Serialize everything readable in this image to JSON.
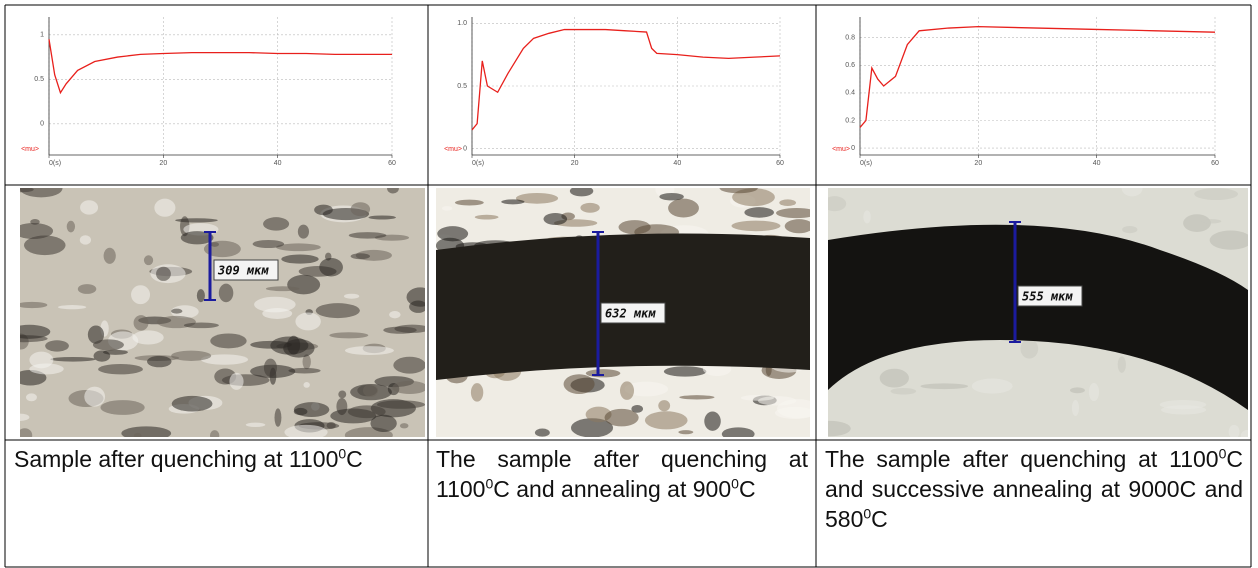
{
  "panels": [
    {
      "chart": {
        "type": "line",
        "x": [
          0,
          1,
          2,
          3,
          5,
          8,
          12,
          16,
          20,
          25,
          30,
          35,
          40,
          45,
          50,
          55,
          60
        ],
        "values": [
          0.95,
          0.55,
          0.35,
          0.45,
          0.6,
          0.7,
          0.75,
          0.78,
          0.79,
          0.8,
          0.8,
          0.8,
          0.79,
          0.79,
          0.78,
          0.78,
          0.78
        ],
        "color": "#e8201c",
        "xlim": [
          0,
          60
        ],
        "ylim": [
          -0.35,
          1.2
        ],
        "xticks": [
          {
            "value": 0,
            "label": "0(s)"
          },
          20,
          40,
          60
        ],
        "yticks": [
          0,
          0.5,
          1
        ],
        "grid": true,
        "y_label": "<mu>"
      },
      "micrograph": {
        "label": "309 мкм"
      },
      "caption": [
        "Sample after quenching at 1100",
        "0",
        "C"
      ]
    },
    {
      "chart": {
        "type": "line",
        "x": [
          0,
          1,
          2,
          3,
          5,
          7,
          10,
          12,
          15,
          18,
          22,
          26,
          30,
          34,
          35,
          36,
          40,
          45,
          50,
          55,
          60
        ],
        "values": [
          0.15,
          0.2,
          0.7,
          0.5,
          0.45,
          0.6,
          0.8,
          0.88,
          0.92,
          0.95,
          0.95,
          0.95,
          0.94,
          0.93,
          0.8,
          0.76,
          0.75,
          0.73,
          0.72,
          0.73,
          0.74
        ],
        "color": "#e8201c",
        "xlim": [
          0,
          60
        ],
        "ylim": [
          -0.05,
          1.05
        ],
        "xticks": [
          {
            "value": 0,
            "label": "0(s)"
          },
          20,
          40,
          60
        ],
        "yticks": [
          0,
          0.5,
          {
            "value": 1,
            "label": "1.0"
          }
        ],
        "grid": true,
        "y_label": "<mu>"
      },
      "micrograph": {
        "label": "632 мкм"
      },
      "caption": [
        "The sample after quenching at 1100",
        "0",
        "C and annealing at 900",
        "0",
        "C"
      ]
    },
    {
      "chart": {
        "type": "line",
        "x": [
          0,
          1,
          2,
          3,
          4,
          6,
          8,
          10,
          15,
          20,
          30,
          40,
          50,
          60
        ],
        "values": [
          0.15,
          0.2,
          0.58,
          0.5,
          0.45,
          0.52,
          0.75,
          0.85,
          0.87,
          0.88,
          0.87,
          0.86,
          0.85,
          0.84
        ],
        "color": "#e8201c",
        "xlim": [
          0,
          60
        ],
        "ylim": [
          -0.05,
          0.95
        ],
        "xticks": [
          {
            "value": 0,
            "label": "0(s)"
          },
          20,
          40,
          60
        ],
        "yticks": [
          0,
          0.2,
          0.4,
          0.6,
          0.8
        ],
        "grid": true,
        "y_label": "<mu>"
      },
      "micrograph": {
        "label": "555 мкм"
      },
      "caption": [
        "The sample after quenching at 1100",
        "0",
        "C and successive annealing at 9000C and 580",
        "0",
        "C"
      ]
    }
  ]
}
